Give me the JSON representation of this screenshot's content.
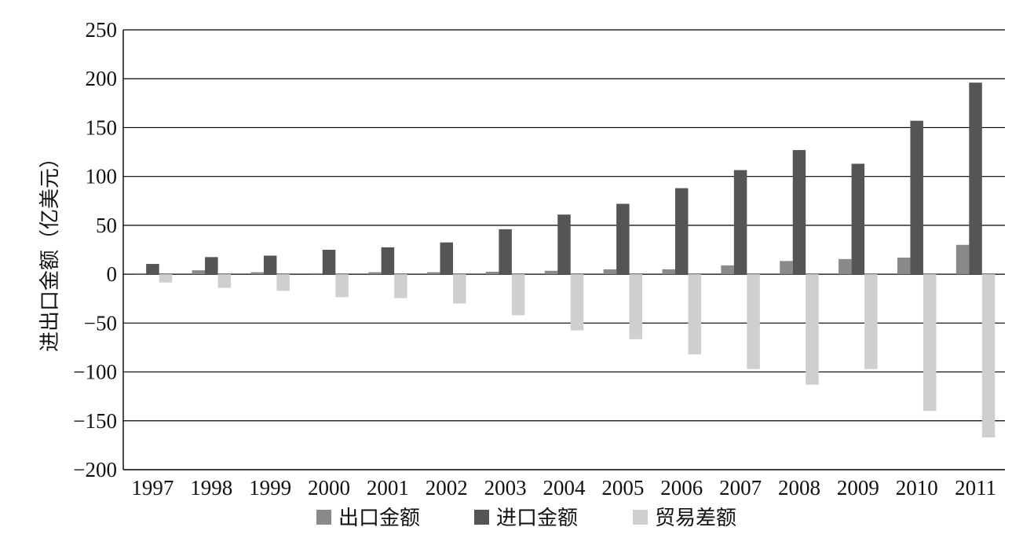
{
  "chart_data": {
    "type": "bar",
    "title": "",
    "xlabel": "",
    "ylabel": "进出口金额（亿美元）",
    "ylim": [
      -200,
      250
    ],
    "yticks": [
      250,
      200,
      150,
      100,
      50,
      0,
      -50,
      -100,
      -150,
      -200
    ],
    "ytick_labels": [
      "250",
      "200",
      "150",
      "100",
      "50",
      "0",
      "−50",
      "−100",
      "−150",
      "−200"
    ],
    "grid": true,
    "legend_position": "bottom",
    "categories": [
      "1997",
      "1998",
      "1999",
      "2000",
      "2001",
      "2002",
      "2003",
      "2004",
      "2005",
      "2006",
      "2007",
      "2008",
      "2009",
      "2010",
      "2011"
    ],
    "series": [
      {
        "name": "出口金额",
        "color": "#8a8a8a",
        "values": [
          1,
          4,
          2,
          1,
          2,
          2,
          2.5,
          3.5,
          5,
          5,
          9,
          13.5,
          15.5,
          17,
          30
        ]
      },
      {
        "name": "进口金额",
        "color": "#555555",
        "values": [
          10.5,
          17.5,
          19,
          25,
          27.5,
          32.5,
          46,
          61,
          72,
          88,
          106.5,
          127,
          113,
          157,
          196
        ]
      },
      {
        "name": "贸易差额",
        "color": "#cfcfcf",
        "values": [
          -8.5,
          -14,
          -17,
          -23.5,
          -24.5,
          -30,
          -42,
          -57.5,
          -66.5,
          -82,
          -97,
          -113,
          -97,
          -140,
          -167
        ]
      }
    ]
  }
}
